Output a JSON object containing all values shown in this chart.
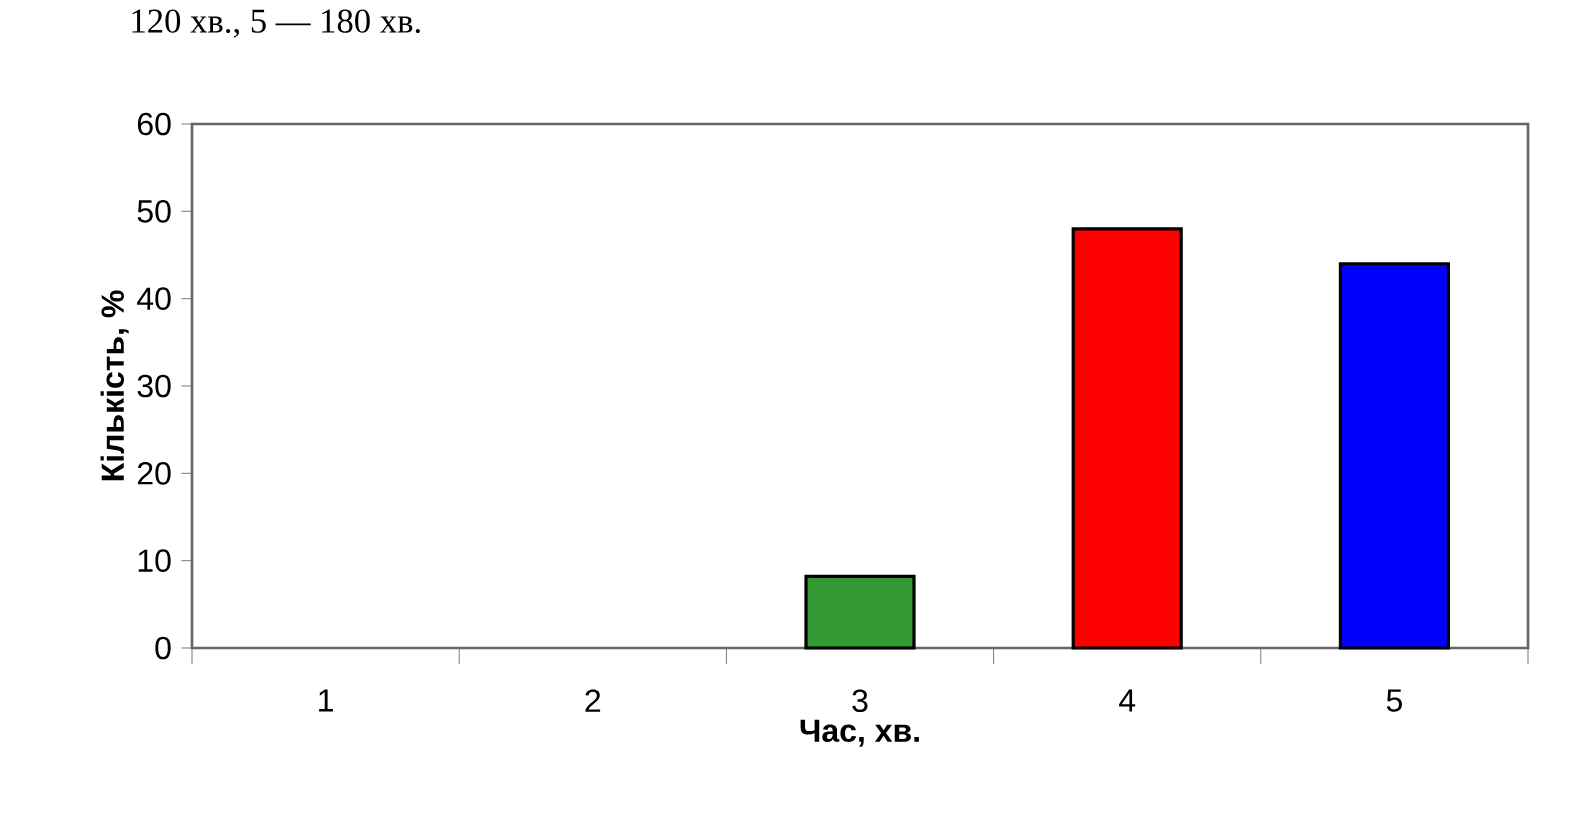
{
  "chart_data": {
    "type": "bar",
    "xlabel": "Час, хв.",
    "ylabel": "Кількість, %",
    "categories": [
      "1",
      "2",
      "3",
      "4",
      "5"
    ],
    "values": [
      0,
      0,
      8.2,
      48,
      44
    ],
    "colors": [
      "#339933",
      "#339933",
      "#339933",
      "#ff0000",
      "#0000ff"
    ],
    "ylim": [
      0,
      60
    ],
    "yticks": [
      0,
      10,
      20,
      30,
      40,
      50,
      60
    ],
    "annotations": [
      "120 хв., 5 — 180 хв."
    ]
  }
}
